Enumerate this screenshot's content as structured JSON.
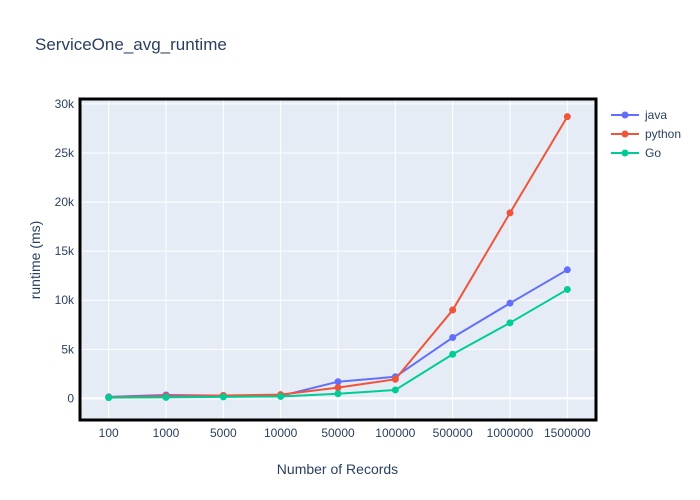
{
  "chart_data": {
    "type": "line",
    "title": "ServiceOne_avg_runtime",
    "xlabel": "Number of Records",
    "ylabel": "runtime (ms)",
    "categories": [
      "100",
      "1000",
      "5000",
      "10000",
      "50000",
      "100000",
      "500000",
      "1000000",
      "1500000"
    ],
    "ylim": [
      -2200,
      30500
    ],
    "yticks": [
      0,
      5000,
      10000,
      15000,
      20000,
      25000,
      30000
    ],
    "ytick_labels": [
      "0",
      "5k",
      "10k",
      "15k",
      "20k",
      "25k",
      "30k"
    ],
    "grid": true,
    "legend_position": "right",
    "plot_background": "#e5ecf6",
    "series": [
      {
        "name": "java",
        "color": "#636efa",
        "values": [
          150,
          350,
          280,
          250,
          1700,
          2200,
          6200,
          9700,
          13100
        ]
      },
      {
        "name": "python",
        "color": "#ef553b",
        "values": [
          120,
          250,
          300,
          380,
          1100,
          1950,
          9000,
          18900,
          28700
        ]
      },
      {
        "name": "Go",
        "color": "#00cc96",
        "values": [
          80,
          100,
          150,
          200,
          480,
          860,
          4500,
          7700,
          11100
        ]
      }
    ]
  }
}
